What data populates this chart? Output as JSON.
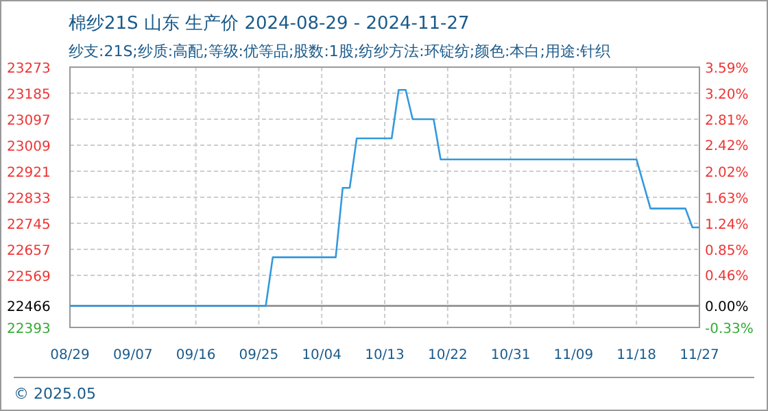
{
  "chart_data": {
    "type": "line",
    "title": "棉纱21S 山东 生产价 2024-08-29 - 2024-11-27",
    "subtitle": "纱支:21S;纱质:高配;等级:优等品;股数:1股;纺纱方法:环锭纺;颜色:本白;用途:针织",
    "annotations": [
      "© 2025.05"
    ],
    "x": [
      "2024-08-29",
      "2024-09-26",
      "2024-09-27",
      "2024-10-06",
      "2024-10-07",
      "2024-10-08",
      "2024-10-09",
      "2024-10-14",
      "2024-10-15",
      "2024-10-16",
      "2024-10-17",
      "2024-10-20",
      "2024-10-21",
      "2024-11-18",
      "2024-11-20",
      "2024-11-25",
      "2024-11-26",
      "2024-11-27"
    ],
    "series": [
      {
        "color": "#3399dd",
        "values": [
          22466,
          22466,
          22630,
          22630,
          22865,
          22865,
          23032,
          23032,
          23196,
          23196,
          23097,
          23097,
          22961,
          22961,
          22795,
          22795,
          22731,
          22731
        ]
      }
    ],
    "xlim": [
      "2024-08-29",
      "2024-11-27"
    ],
    "xticks": [
      {
        "value": "2024-08-29",
        "label": "08/29"
      },
      {
        "value": "2024-09-07",
        "label": "09/07"
      },
      {
        "value": "2024-09-16",
        "label": "09/16"
      },
      {
        "value": "2024-09-25",
        "label": "09/25"
      },
      {
        "value": "2024-10-04",
        "label": "10/04"
      },
      {
        "value": "2024-10-13",
        "label": "10/13"
      },
      {
        "value": "2024-10-22",
        "label": "10/22"
      },
      {
        "value": "2024-10-31",
        "label": "10/31"
      },
      {
        "value": "2024-11-09",
        "label": "11/09"
      },
      {
        "value": "2024-11-18",
        "label": "11/18"
      },
      {
        "value": "2024-11-27",
        "label": "11/27"
      }
    ],
    "ylim": [
      22393,
      23273
    ],
    "yticks": [
      23273,
      23185,
      23097,
      23009,
      22921,
      22833,
      22745,
      22657,
      22569,
      22466,
      22393
    ],
    "y2lim": [
      -0.33,
      3.59
    ],
    "y2ticks": [
      {
        "value": 3.59,
        "label": "3.59%"
      },
      {
        "value": 3.2,
        "label": "3.20%"
      },
      {
        "value": 2.81,
        "label": "2.81%"
      },
      {
        "value": 2.42,
        "label": "2.42%"
      },
      {
        "value": 2.02,
        "label": "2.02%"
      },
      {
        "value": 1.63,
        "label": "1.63%"
      },
      {
        "value": 1.24,
        "label": "1.24%"
      },
      {
        "value": 0.85,
        "label": "0.85%"
      },
      {
        "value": 0.46,
        "label": "0.46%"
      },
      {
        "value": 0,
        "label": "0.00%"
      },
      {
        "value": -0.33,
        "label": "-0.33%"
      }
    ],
    "ref_lines": [
      {
        "axis": "y",
        "value": 22466,
        "color": "#999999"
      }
    ],
    "grid": true
  }
}
